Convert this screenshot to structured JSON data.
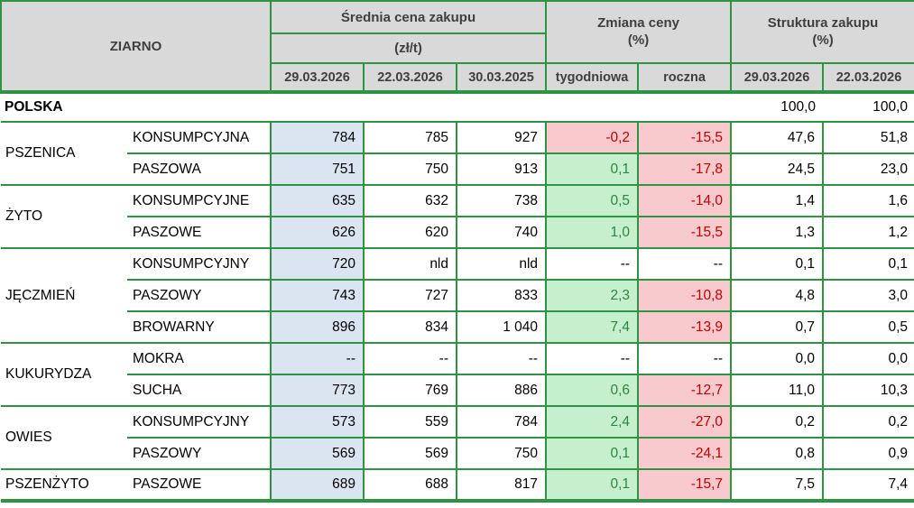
{
  "header": {
    "ziarno": "ZIARNO",
    "price_group": "Średnia cena zakupu",
    "price_unit": "(zł/t)",
    "change_group": "Zmiana ceny",
    "change_unit": "(%)",
    "structure_group": "Struktura zakupu",
    "structure_unit": "(%)",
    "price_dates": [
      "29.03.2026",
      "22.03.2026",
      "30.03.2025"
    ],
    "change_cols": [
      "tygodniowa",
      "roczna"
    ],
    "structure_dates": [
      "29.03.2026",
      "22.03.2026"
    ]
  },
  "summary_row": {
    "label": "POLSKA",
    "structure": [
      "100,0",
      "100,0"
    ]
  },
  "groups": [
    {
      "name": "PSZENICA",
      "rows": [
        {
          "type": "KONSUMPCYJNA",
          "prices": [
            "784",
            "785",
            "927"
          ],
          "weekly": {
            "value": "-0,2",
            "trend": "down"
          },
          "yearly": {
            "value": "-15,5",
            "trend": "down"
          },
          "structure": [
            "47,6",
            "51,8"
          ]
        },
        {
          "type": "PASZOWA",
          "prices": [
            "751",
            "750",
            "913"
          ],
          "weekly": {
            "value": "0,1",
            "trend": "up"
          },
          "yearly": {
            "value": "-17,8",
            "trend": "down"
          },
          "structure": [
            "24,5",
            "23,0"
          ]
        }
      ]
    },
    {
      "name": "ŻYTO",
      "rows": [
        {
          "type": "KONSUMPCYJNE",
          "prices": [
            "635",
            "632",
            "738"
          ],
          "weekly": {
            "value": "0,5",
            "trend": "up"
          },
          "yearly": {
            "value": "-14,0",
            "trend": "down"
          },
          "structure": [
            "1,4",
            "1,6"
          ]
        },
        {
          "type": "PASZOWE",
          "prices": [
            "626",
            "620",
            "740"
          ],
          "weekly": {
            "value": "1,0",
            "trend": "up"
          },
          "yearly": {
            "value": "-15,5",
            "trend": "down"
          },
          "structure": [
            "1,3",
            "1,2"
          ]
        }
      ]
    },
    {
      "name": "JĘCZMIEŃ",
      "rows": [
        {
          "type": "KONSUMPCYJNY",
          "prices": [
            "720",
            "nld",
            "nld"
          ],
          "weekly": {
            "value": "--",
            "trend": "none"
          },
          "yearly": {
            "value": "--",
            "trend": "none"
          },
          "structure": [
            "0,1",
            "0,1"
          ]
        },
        {
          "type": "PASZOWY",
          "prices": [
            "743",
            "727",
            "833"
          ],
          "weekly": {
            "value": "2,3",
            "trend": "up"
          },
          "yearly": {
            "value": "-10,8",
            "trend": "down"
          },
          "structure": [
            "4,8",
            "3,0"
          ]
        },
        {
          "type": "BROWARNY",
          "prices": [
            "896",
            "834",
            "1 040"
          ],
          "weekly": {
            "value": "7,4",
            "trend": "up"
          },
          "yearly": {
            "value": "-13,9",
            "trend": "down"
          },
          "structure": [
            "0,7",
            "0,5"
          ]
        }
      ]
    },
    {
      "name": "KUKURYDZA",
      "rows": [
        {
          "type": "MOKRA",
          "prices": [
            "--",
            "--",
            "--"
          ],
          "weekly": {
            "value": "--",
            "trend": "none"
          },
          "yearly": {
            "value": "--",
            "trend": "none"
          },
          "structure": [
            "0,0",
            "0,0"
          ]
        },
        {
          "type": "SUCHA",
          "prices": [
            "773",
            "769",
            "886"
          ],
          "weekly": {
            "value": "0,6",
            "trend": "up"
          },
          "yearly": {
            "value": "-12,7",
            "trend": "down"
          },
          "structure": [
            "11,0",
            "10,3"
          ]
        }
      ]
    },
    {
      "name": "OWIES",
      "rows": [
        {
          "type": "KONSUMPCYJNY",
          "prices": [
            "573",
            "559",
            "784"
          ],
          "weekly": {
            "value": "2,4",
            "trend": "up"
          },
          "yearly": {
            "value": "-27,0",
            "trend": "down"
          },
          "structure": [
            "0,2",
            "0,2"
          ]
        },
        {
          "type": "PASZOWY",
          "prices": [
            "569",
            "569",
            "750"
          ],
          "weekly": {
            "value": "0,1",
            "trend": "up"
          },
          "yearly": {
            "value": "-24,1",
            "trend": "down"
          },
          "structure": [
            "0,8",
            "0,9"
          ]
        }
      ]
    },
    {
      "name": "PSZENŻYTO",
      "rows": [
        {
          "type": "PASZOWE",
          "prices": [
            "689",
            "688",
            "817"
          ],
          "weekly": {
            "value": "0,1",
            "trend": "up"
          },
          "yearly": {
            "value": "-15,7",
            "trend": "down"
          },
          "structure": [
            "7,5",
            "7,4"
          ]
        }
      ]
    }
  ],
  "colors": {
    "border_green": "#2e9444",
    "header_bg": "#d9d9d9",
    "current_price_col_bg": "#dbe5f1",
    "positive_bg": "#c6efce",
    "positive_text": "#2e8540",
    "negative_bg": "#f8c9cd",
    "negative_text": "#c00000"
  }
}
